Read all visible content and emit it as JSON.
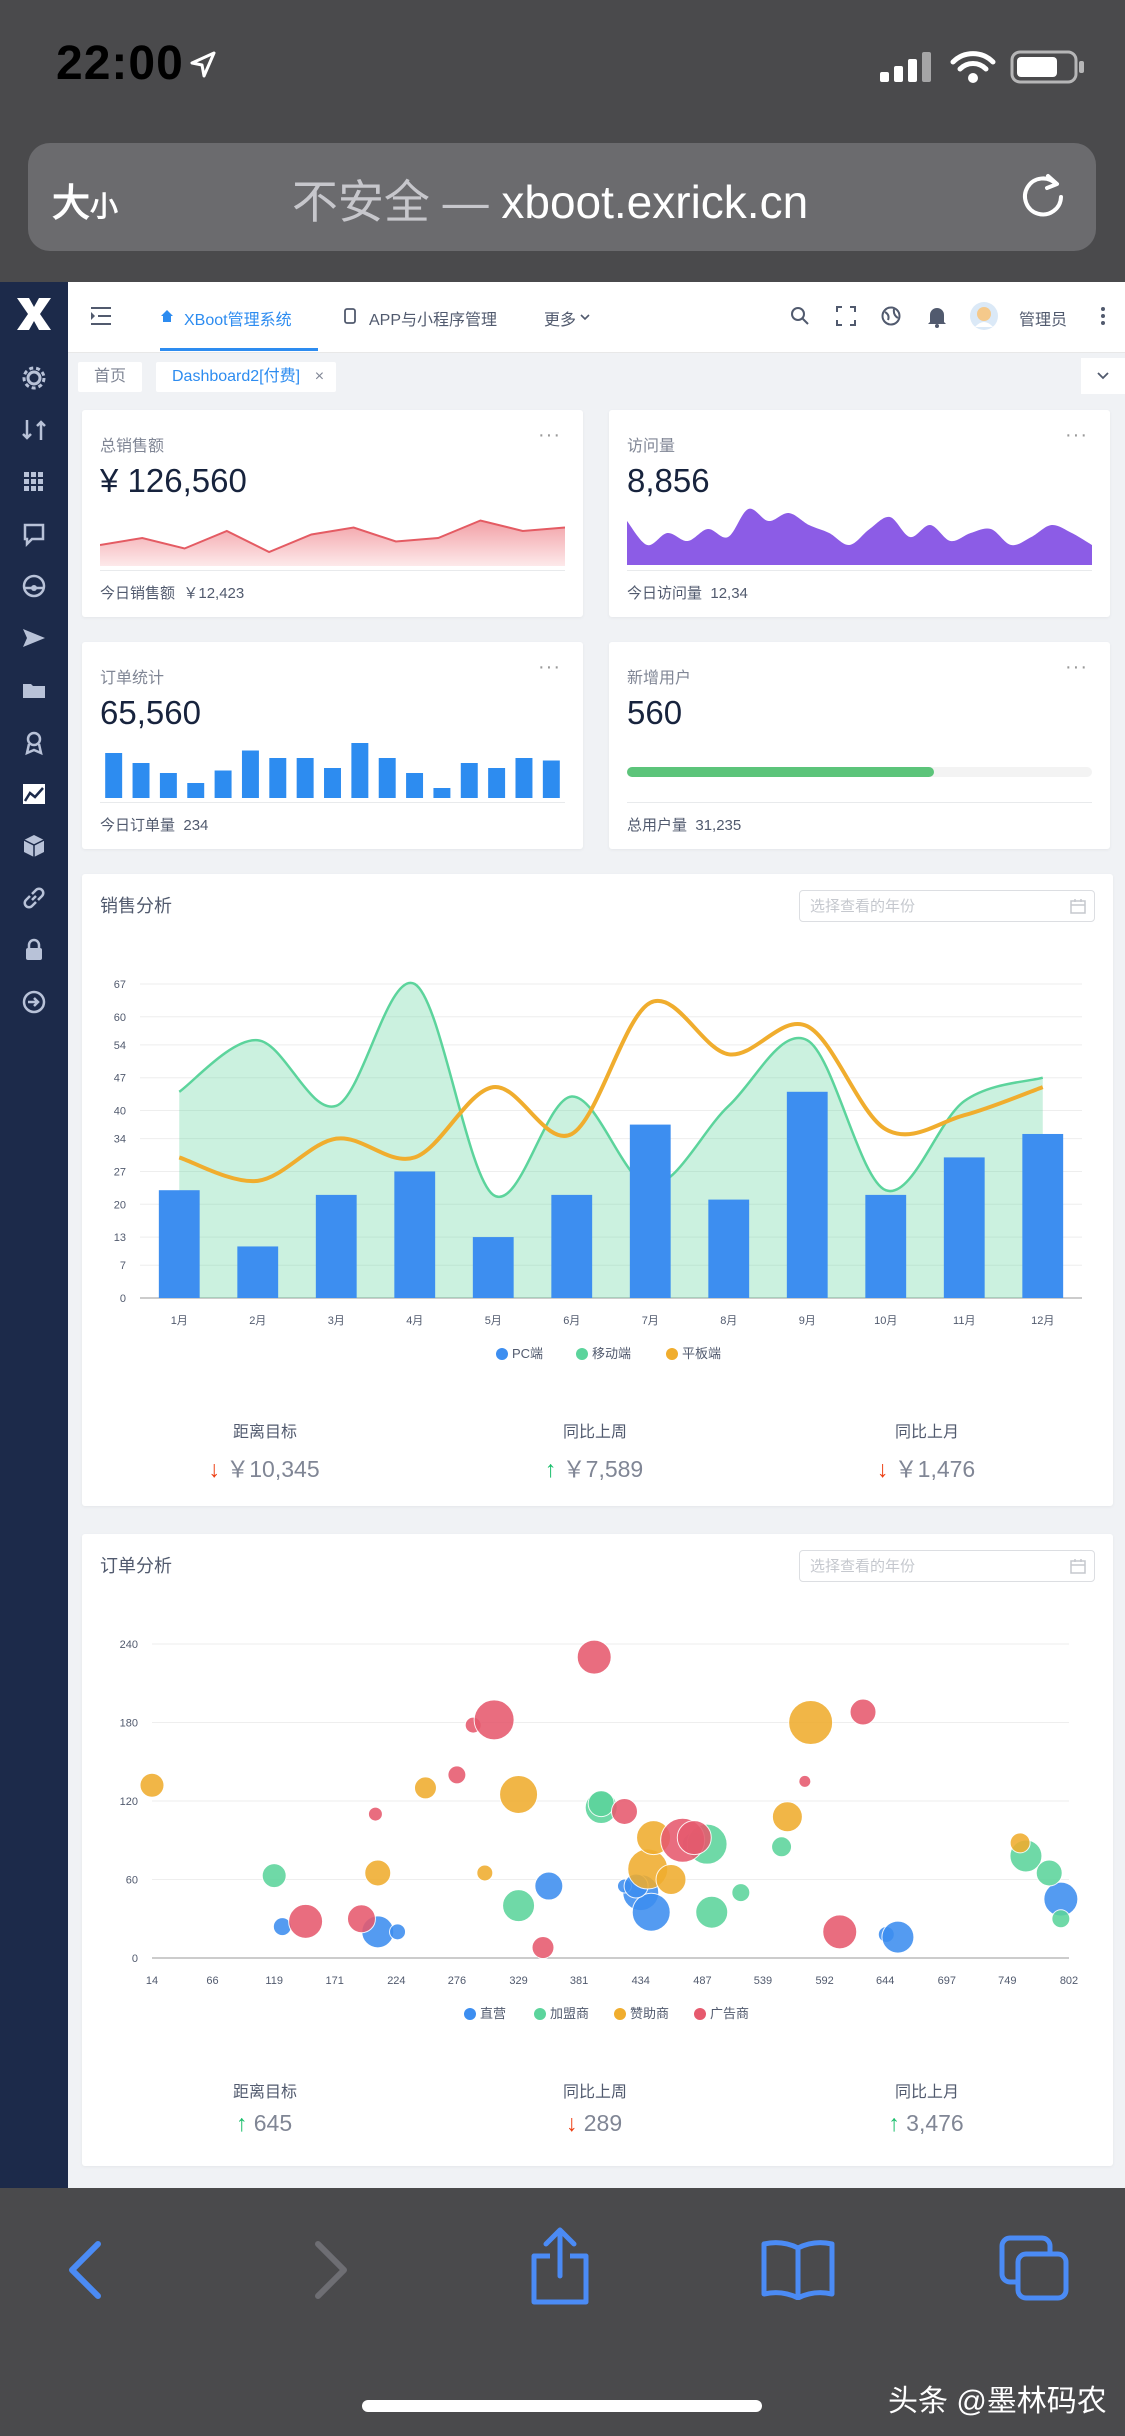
{
  "status_bar": {
    "time": "22:00"
  },
  "browser": {
    "text_size_label": "大",
    "text_size_small": "小",
    "url_insecure": "不安全 —",
    "url_domain": "xboot.exrick.cn"
  },
  "topnav": {
    "tab_main": "XBoot管理系统",
    "tab_app": "APP与小程序管理",
    "more": "更多",
    "user": "管理员"
  },
  "tags": {
    "home": "首页",
    "dashboard": "Dashboard2[付费]",
    "close": "×"
  },
  "cards": {
    "sales": {
      "title": "总销售额",
      "value": "¥ 126,560",
      "foot_label": "今日销售额",
      "foot_value": "￥12,423"
    },
    "visits": {
      "title": "访问量",
      "value": "8,856",
      "foot_label": "今日访问量",
      "foot_value": "12,34"
    },
    "orders": {
      "title": "订单统计",
      "value": "65,560",
      "foot_label": "今日订单量",
      "foot_value": "234"
    },
    "users": {
      "title": "新增用户",
      "value": "560",
      "foot_label": "总用户量",
      "foot_value": "31,235",
      "progress": 0.66
    }
  },
  "sales_analysis": {
    "title": "销售分析",
    "placeholder": "选择查看的年份",
    "stats": [
      {
        "label": "距离目标",
        "arrow": "↓",
        "value": "￥10,345"
      },
      {
        "label": "同比上周",
        "arrow": "↑",
        "value": "￥7,589"
      },
      {
        "label": "同比上月",
        "arrow": "↓",
        "value": "￥1,476"
      }
    ]
  },
  "order_analysis": {
    "title": "订单分析",
    "placeholder": "选择查看的年份",
    "stats": [
      {
        "label": "距离目标",
        "arrow": "↑",
        "value": "645"
      },
      {
        "label": "同比上周",
        "arrow": "↓",
        "value": "289"
      },
      {
        "label": "同比上月",
        "arrow": "↑",
        "value": "3,476"
      }
    ]
  },
  "watermark": "头条 @墨林码农",
  "colors": {
    "blue": "#2d8cf0",
    "green": "#5cd49c",
    "orange": "#f0ad2e",
    "red": "#e65a6e",
    "purple": "#8c5ce6",
    "sidebar": "#1c2a4a"
  },
  "chart_data": [
    {
      "type": "line",
      "values": [
        26,
        28,
        25,
        30,
        24,
        29,
        31,
        27,
        28,
        33,
        30,
        31
      ]
    },
    {
      "type": "area",
      "values": [
        42,
        30,
        36,
        32,
        38,
        34,
        48,
        42,
        46,
        40,
        36,
        30,
        38,
        44,
        34,
        40,
        32,
        36,
        38,
        30,
        34,
        40,
        36,
        30
      ]
    },
    {
      "type": "bar",
      "values": [
        18,
        14,
        10,
        6,
        11,
        19,
        16,
        16,
        12,
        22,
        16,
        10,
        4,
        14,
        12,
        16,
        15
      ]
    },
    {
      "type": "bar",
      "categories": [
        "1月",
        "2月",
        "3月",
        "4月",
        "5月",
        "6月",
        "7月",
        "8月",
        "9月",
        "10月",
        "11月",
        "12月"
      ],
      "ylim": [
        0,
        67
      ],
      "y_ticks": [
        0,
        7,
        13,
        20,
        27,
        34,
        40,
        47,
        54,
        60,
        67
      ],
      "series": [
        {
          "name": "PC端",
          "kind": "bar",
          "color": "#3d8ef0",
          "values": [
            23,
            11,
            22,
            27,
            13,
            22,
            37,
            21,
            44,
            22,
            30,
            35
          ]
        },
        {
          "name": "移动端",
          "kind": "area",
          "color": "#5cd49c",
          "values": [
            44,
            55,
            41,
            67,
            22,
            43,
            24,
            41,
            55,
            23,
            42,
            47
          ]
        },
        {
          "name": "平板端",
          "kind": "line",
          "color": "#f0ad2e",
          "values": [
            30,
            25,
            34,
            30,
            45,
            35,
            63,
            52,
            58,
            36,
            39,
            45
          ]
        }
      ]
    },
    {
      "type": "scatter",
      "xlim": [
        14,
        802
      ],
      "ylim": [
        0,
        240
      ],
      "x_ticks": [
        14,
        66,
        119,
        171,
        224,
        276,
        329,
        381,
        434,
        487,
        539,
        592,
        644,
        697,
        749,
        802
      ],
      "y_ticks": [
        0,
        60,
        120,
        180,
        240
      ],
      "series": [
        {
          "name": "直营",
          "color": "#3d8ef0",
          "points": [
            [
              126,
              24,
              14
            ],
            [
              208,
              20,
              28
            ],
            [
              225,
              20,
              12
            ],
            [
              355,
              55,
              24
            ],
            [
              434,
              50,
              32
            ],
            [
              443,
              35,
              34
            ],
            [
              420,
              55,
              10
            ],
            [
              480,
              87,
              20
            ],
            [
              645,
              18,
              12
            ],
            [
              655,
              16,
              28
            ],
            [
              795,
              45,
              30
            ],
            [
              430,
              55,
              20
            ]
          ]
        },
        {
          "name": "加盟商",
          "color": "#5cd49c",
          "points": [
            [
              119,
              63,
              20
            ],
            [
              329,
              40,
              28
            ],
            [
              400,
              115,
              28
            ],
            [
              491,
              87,
              36
            ],
            [
              495,
              35,
              28
            ],
            [
              520,
              50,
              14
            ],
            [
              555,
              85,
              16
            ],
            [
              765,
              78,
              28
            ],
            [
              785,
              65,
              22
            ],
            [
              795,
              30,
              14
            ],
            [
              400,
              118,
              22
            ]
          ]
        },
        {
          "name": "赞助商",
          "color": "#f0ad2e",
          "points": [
            [
              14,
              132,
              20
            ],
            [
              208,
              65,
              22
            ],
            [
              249,
              130,
              18
            ],
            [
              329,
              125,
              34
            ],
            [
              300,
              65,
              12
            ],
            [
              440,
              68,
              36
            ],
            [
              445,
              92,
              30
            ],
            [
              560,
              108,
              26
            ],
            [
              580,
              180,
              40
            ],
            [
              760,
              88,
              16
            ],
            [
              460,
              60,
              26
            ]
          ]
        },
        {
          "name": "广告商",
          "color": "#e65a6e",
          "points": [
            [
              146,
              28,
              30
            ],
            [
              194,
              30,
              24
            ],
            [
              206,
              110,
              10
            ],
            [
              276,
              140,
              14
            ],
            [
              290,
              178,
              12
            ],
            [
              308,
              182,
              36
            ],
            [
              350,
              8,
              18
            ],
            [
              394,
              230,
              30
            ],
            [
              420,
              112,
              22
            ],
            [
              470,
              90,
              40
            ],
            [
              480,
              92,
              30
            ],
            [
              575,
              135,
              8
            ],
            [
              605,
              20,
              30
            ],
            [
              625,
              188,
              22
            ]
          ]
        }
      ]
    }
  ]
}
